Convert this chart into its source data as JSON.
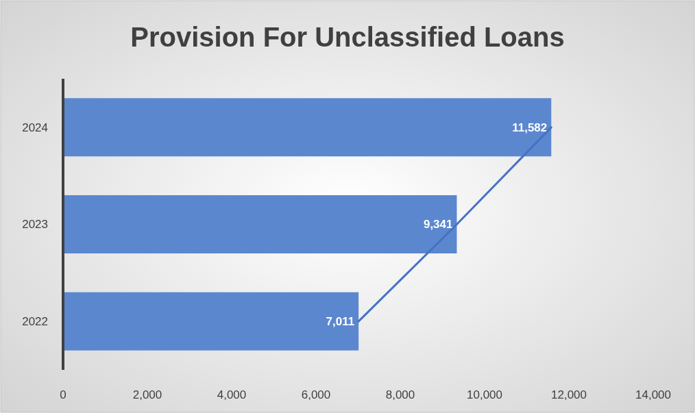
{
  "chart_data": {
    "type": "bar",
    "orientation": "horizontal",
    "title": "Provision For Unclassified Loans",
    "categories": [
      "2024",
      "2023",
      "2022"
    ],
    "series": [
      {
        "color": "#5b87cf",
        "values": [
          11582,
          9341,
          7011
        ],
        "value_labels": [
          "11,582",
          "9,341",
          "7,011"
        ]
      },
      {
        "type": "line",
        "color": "#4472c4",
        "values": [
          11582,
          9341,
          7011
        ]
      }
    ],
    "xlim": [
      0,
      14000
    ],
    "xticks": [
      0,
      {
        "value": 2000,
        "label": "2,000"
      },
      {
        "value": 4000,
        "label": "4,000"
      },
      {
        "value": 6000,
        "label": "6,000"
      },
      {
        "value": 8000,
        "label": "8,000"
      },
      {
        "value": 10000,
        "label": "10,000"
      },
      {
        "value": 12000,
        "label": "12,000"
      },
      {
        "value": 14000,
        "label": "14,000"
      }
    ]
  }
}
